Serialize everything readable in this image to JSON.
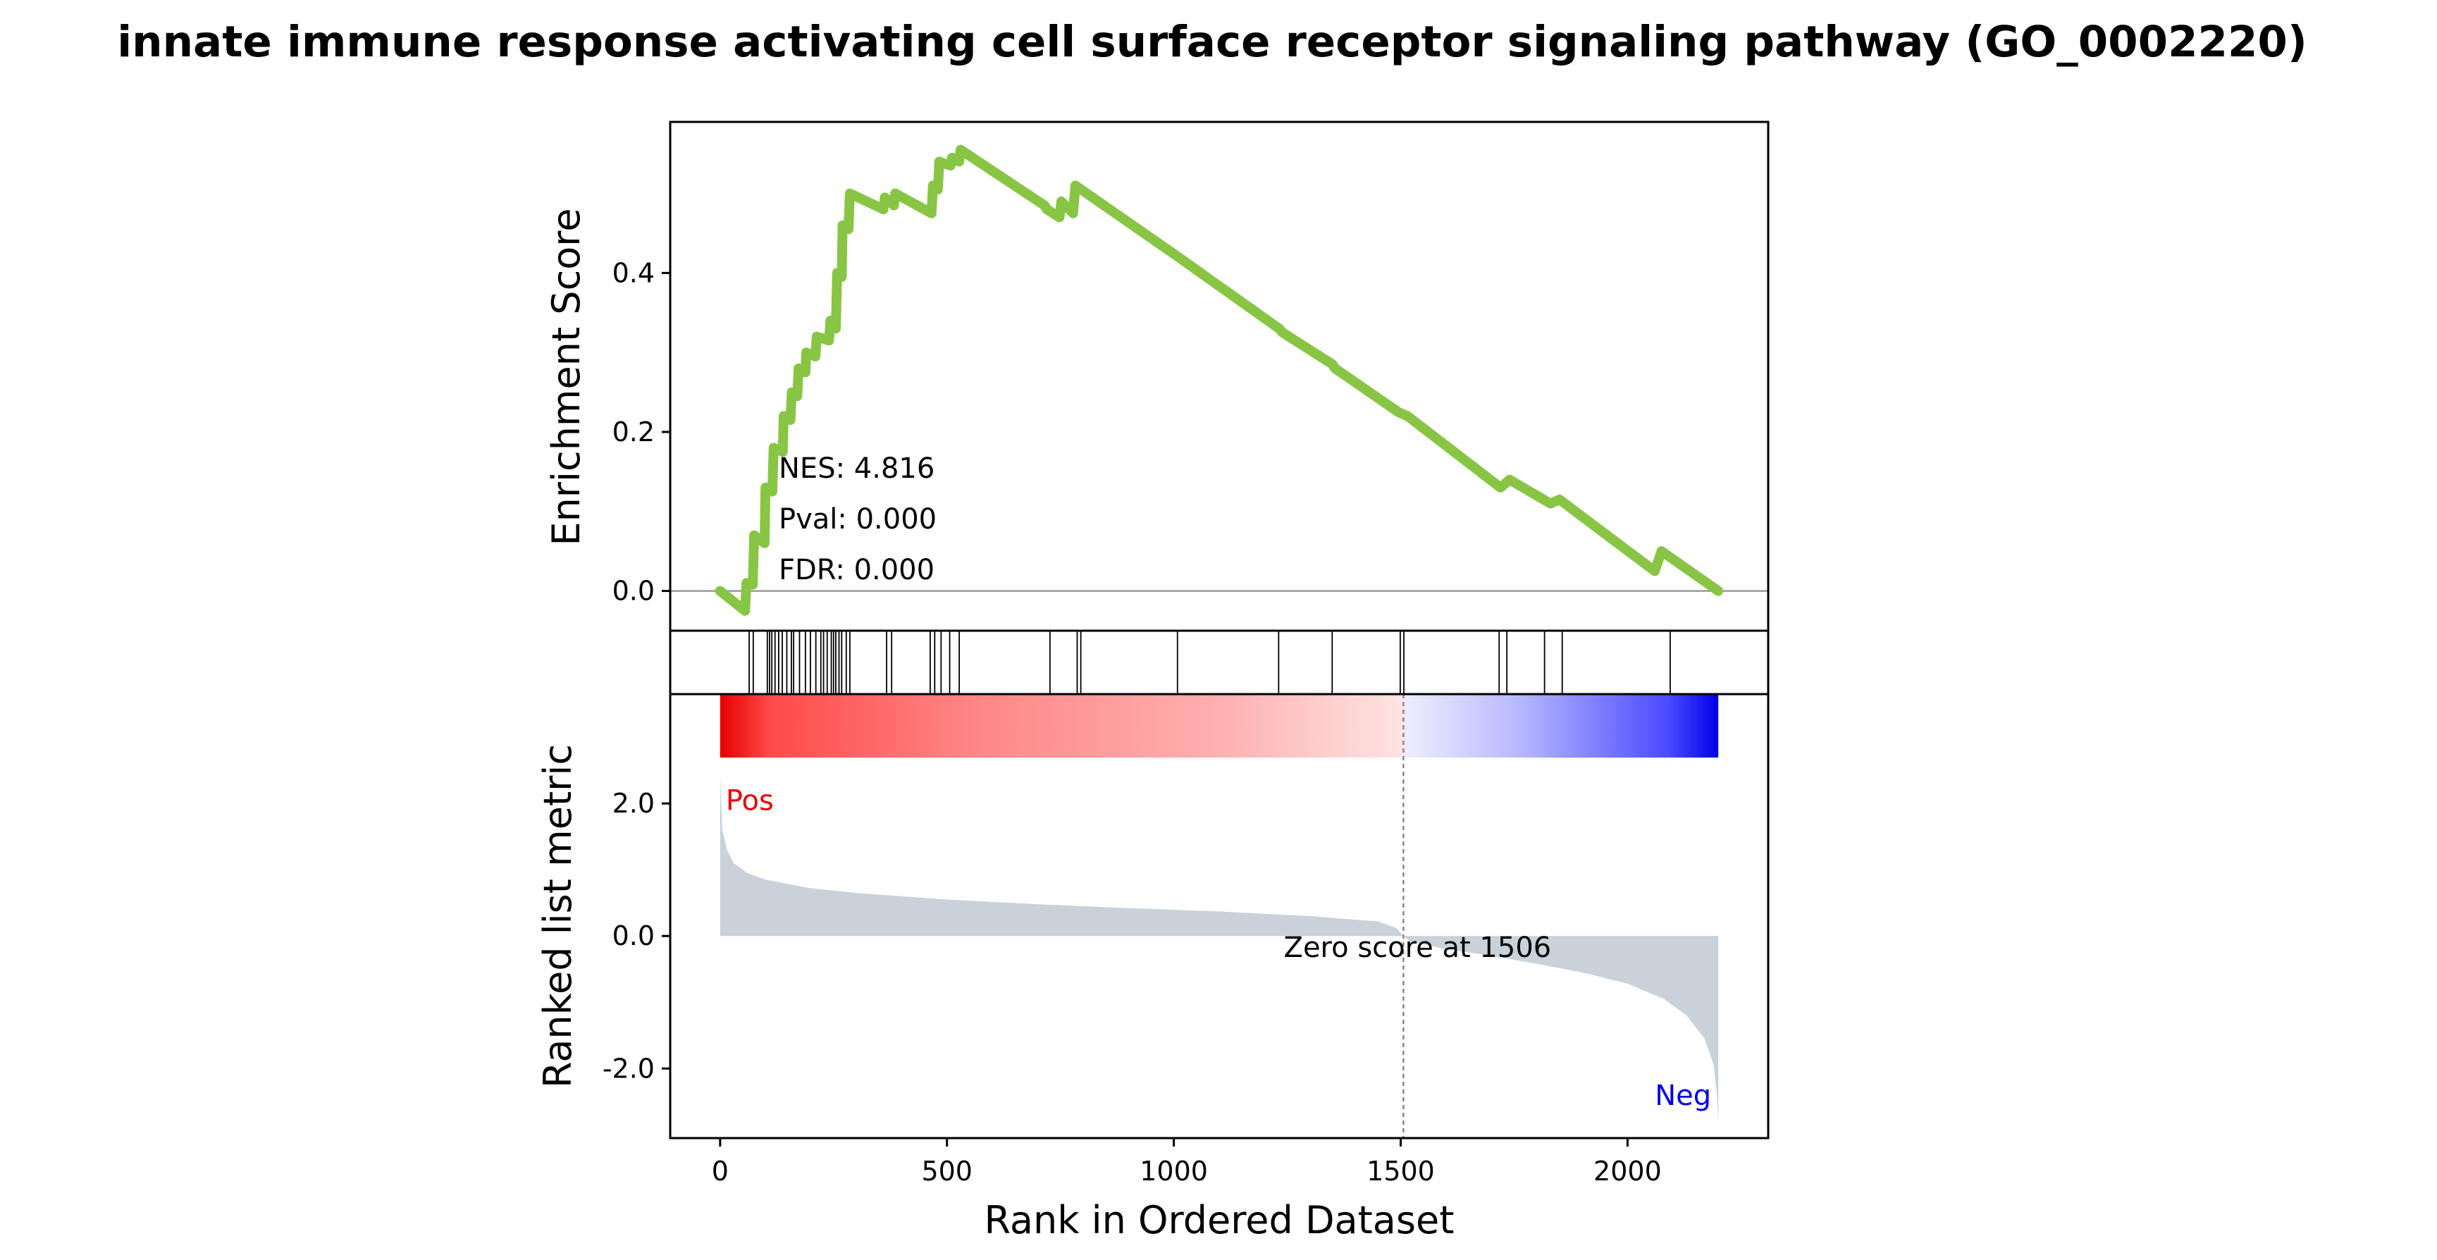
{
  "chart_data": {
    "type": "line",
    "title": "innate immune response activating cell surface receptor signaling pathway (GO_0002220)",
    "xlabel": "Rank in Ordered Dataset",
    "n_genes": 2200,
    "xlim": [
      -110,
      2310
    ],
    "xticks": [
      0,
      500,
      1000,
      1500,
      2000
    ],
    "enrichment": {
      "ylabel": "Enrichment Score",
      "ylim": [
        -0.05,
        0.59
      ],
      "yticks": [
        0.0,
        0.2,
        0.4
      ],
      "ytick_labels": [
        "0.0",
        "0.2",
        "0.4"
      ],
      "line_color": "#88c544",
      "stats": {
        "nes": "NES: 4.816",
        "pval": "Pval: 0.000",
        "fdr": "FDR: 0.000"
      },
      "points": [
        [
          0,
          0
        ],
        [
          55,
          -0.025
        ],
        [
          58,
          0.01
        ],
        [
          72,
          0.008
        ],
        [
          75,
          0.07
        ],
        [
          98,
          0.06
        ],
        [
          100,
          0.13
        ],
        [
          115,
          0.125
        ],
        [
          118,
          0.18
        ],
        [
          138,
          0.175
        ],
        [
          140,
          0.22
        ],
        [
          155,
          0.215
        ],
        [
          158,
          0.25
        ],
        [
          170,
          0.245
        ],
        [
          173,
          0.28
        ],
        [
          188,
          0.275
        ],
        [
          190,
          0.3
        ],
        [
          210,
          0.295
        ],
        [
          213,
          0.32
        ],
        [
          240,
          0.315
        ],
        [
          243,
          0.34
        ],
        [
          255,
          0.33
        ],
        [
          258,
          0.4
        ],
        [
          268,
          0.395
        ],
        [
          270,
          0.46
        ],
        [
          283,
          0.455
        ],
        [
          286,
          0.5
        ],
        [
          360,
          0.48
        ],
        [
          363,
          0.495
        ],
        [
          383,
          0.485
        ],
        [
          386,
          0.5
        ],
        [
          466,
          0.475
        ],
        [
          469,
          0.51
        ],
        [
          480,
          0.505
        ],
        [
          483,
          0.54
        ],
        [
          508,
          0.535
        ],
        [
          511,
          0.545
        ],
        [
          527,
          0.54
        ],
        [
          530,
          0.555
        ],
        [
          715,
          0.485
        ],
        [
          720,
          0.48
        ],
        [
          748,
          0.47
        ],
        [
          752,
          0.49
        ],
        [
          778,
          0.475
        ],
        [
          783,
          0.51
        ],
        [
          1010,
          0.42
        ],
        [
          1232,
          0.33
        ],
        [
          1240,
          0.325
        ],
        [
          1350,
          0.285
        ],
        [
          1355,
          0.28
        ],
        [
          1495,
          0.225
        ],
        [
          1515,
          0.22
        ],
        [
          1720,
          0.13
        ],
        [
          1740,
          0.14
        ],
        [
          1830,
          0.11
        ],
        [
          1850,
          0.115
        ],
        [
          2060,
          0.025
        ],
        [
          2075,
          0.05
        ],
        [
          2200,
          0.0
        ]
      ]
    },
    "hits": [
      64,
      73,
      104,
      109,
      114,
      121,
      129,
      137,
      147,
      157,
      162,
      175,
      188,
      199,
      211,
      222,
      228,
      236,
      245,
      250,
      255,
      262,
      268,
      278,
      286,
      367,
      378,
      463,
      473,
      487,
      506,
      527,
      727,
      787,
      795,
      1008,
      1231,
      1349,
      1499,
      1507,
      1717,
      1734,
      1817,
      1856,
      2094
    ],
    "ranked": {
      "ylabel": "Ranked list metric",
      "ylim": [
        -3.05,
        3.65
      ],
      "yticks": [
        -2.0,
        0.0,
        2.0
      ],
      "ytick_labels": [
        "-2.0",
        "0.0",
        "2.0"
      ],
      "fill_color": "#c9d2da",
      "zero_cross": 1506,
      "zero_label": "Zero score at 1506",
      "pos_label": "Pos",
      "neg_label": "Neg",
      "pos_color": "#e8000b",
      "neg_color": "#0000ee",
      "curve": [
        [
          0,
          2.42
        ],
        [
          5,
          1.6
        ],
        [
          15,
          1.3
        ],
        [
          30,
          1.1
        ],
        [
          60,
          0.95
        ],
        [
          100,
          0.85
        ],
        [
          200,
          0.72
        ],
        [
          300,
          0.65
        ],
        [
          500,
          0.55
        ],
        [
          700,
          0.48
        ],
        [
          900,
          0.42
        ],
        [
          1100,
          0.37
        ],
        [
          1300,
          0.3
        ],
        [
          1450,
          0.22
        ],
        [
          1490,
          0.12
        ],
        [
          1506,
          0.0
        ],
        [
          1520,
          -0.08
        ],
        [
          1600,
          -0.2
        ],
        [
          1700,
          -0.3
        ],
        [
          1800,
          -0.42
        ],
        [
          1900,
          -0.55
        ],
        [
          2000,
          -0.72
        ],
        [
          2080,
          -0.95
        ],
        [
          2130,
          -1.2
        ],
        [
          2170,
          -1.55
        ],
        [
          2190,
          -1.95
        ],
        [
          2197,
          -2.4
        ],
        [
          2200,
          -2.82
        ]
      ]
    }
  }
}
